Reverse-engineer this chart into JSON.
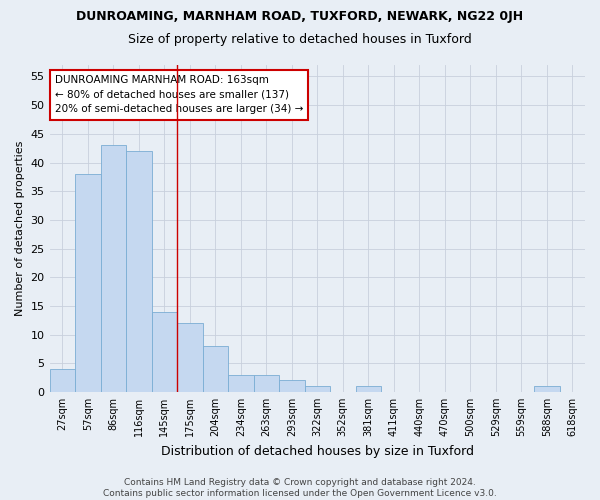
{
  "title1": "DUNROAMING, MARNHAM ROAD, TUXFORD, NEWARK, NG22 0JH",
  "title2": "Size of property relative to detached houses in Tuxford",
  "xlabel": "Distribution of detached houses by size in Tuxford",
  "ylabel": "Number of detached properties",
  "categories": [
    "27sqm",
    "57sqm",
    "86sqm",
    "116sqm",
    "145sqm",
    "175sqm",
    "204sqm",
    "234sqm",
    "263sqm",
    "293sqm",
    "322sqm",
    "352sqm",
    "381sqm",
    "411sqm",
    "440sqm",
    "470sqm",
    "500sqm",
    "529sqm",
    "559sqm",
    "588sqm",
    "618sqm"
  ],
  "values": [
    4,
    38,
    43,
    42,
    14,
    12,
    8,
    3,
    3,
    2,
    1,
    0,
    1,
    0,
    0,
    0,
    0,
    0,
    0,
    1,
    0
  ],
  "bar_color": "#c5d8f0",
  "bar_edge_color": "#7aadd4",
  "grid_color": "#c8d0dc",
  "vline_color": "#cc0000",
  "vline_x_index": 4.5,
  "annotation_text": "DUNROAMING MARNHAM ROAD: 163sqm\n← 80% of detached houses are smaller (137)\n20% of semi-detached houses are larger (34) →",
  "annotation_box_color": "white",
  "annotation_box_edge": "#cc0000",
  "ylim": [
    0,
    57
  ],
  "yticks": [
    0,
    5,
    10,
    15,
    20,
    25,
    30,
    35,
    40,
    45,
    50,
    55
  ],
  "footer": "Contains HM Land Registry data © Crown copyright and database right 2024.\nContains public sector information licensed under the Open Government Licence v3.0.",
  "bg_color": "#e8eef5"
}
